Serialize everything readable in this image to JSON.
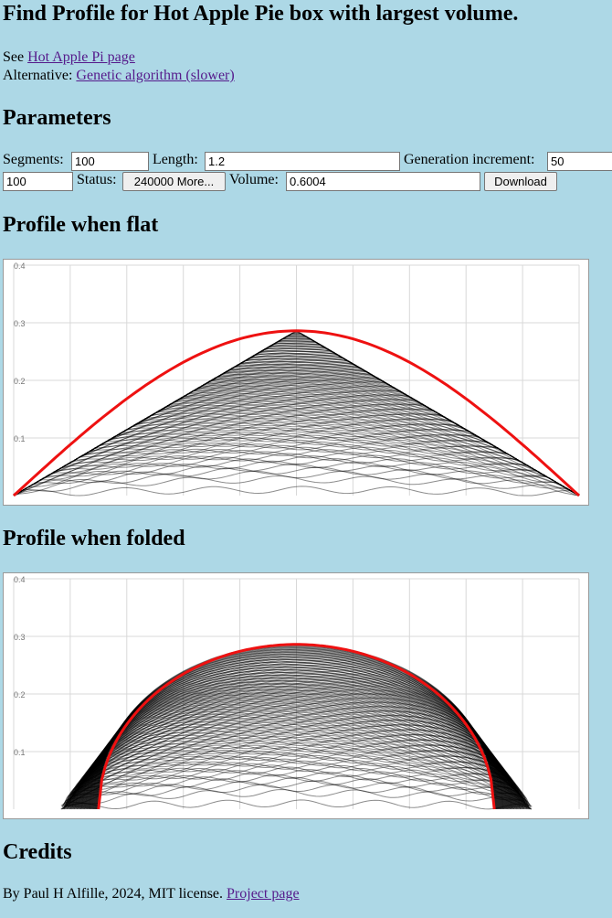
{
  "page": {
    "title": "Find Profile for Hot Apple Pie box with largest volume.",
    "see_prefix": "See ",
    "see_link": "Hot Apple Pi page",
    "alt_prefix": "Alternative: ",
    "alt_link": "Genetic algorithm (slower)"
  },
  "parameters": {
    "heading": "Parameters",
    "segments_label": "Segments:",
    "segments_value": "100",
    "length_label": "Length:",
    "length_value": "1.2",
    "gen_inc_label": "Generation increment:",
    "gen_inc_value": "50",
    "row2_value": "100",
    "status_label": "Status:",
    "status_button": "240000 More...",
    "volume_label": "Volume:",
    "volume_value": "0.6004",
    "download_button": "Download"
  },
  "flat": {
    "heading": "Profile when flat",
    "chart_data": {
      "type": "line",
      "xlim": [
        0,
        1.2
      ],
      "ylim": [
        0,
        0.4
      ],
      "yticks": [
        "0.1",
        "0.2",
        "0.3",
        "0.4"
      ],
      "grid": true,
      "best_profile_color": "#ee1111",
      "history_color": "#000000",
      "best_profile": {
        "x": [
          0,
          0.6,
          1.2
        ],
        "y": [
          0,
          0.286,
          0
        ]
      }
    }
  },
  "folded": {
    "heading": "Profile when folded",
    "chart_data": {
      "type": "line",
      "xlim": [
        0,
        1.2
      ],
      "ylim": [
        0,
        0.4
      ],
      "yticks": [
        "0.1",
        "0.2",
        "0.3",
        "0.4"
      ],
      "grid": true,
      "best_profile_color": "#ee1111",
      "history_color": "#000000",
      "best_profile": {
        "x": [
          0.18,
          0.6,
          1.02
        ],
        "y": [
          0,
          0.286,
          0
        ]
      }
    }
  },
  "credits": {
    "heading": "Credits",
    "text": "By Paul H Alfille, 2024, MIT license. ",
    "link": "Project page"
  }
}
